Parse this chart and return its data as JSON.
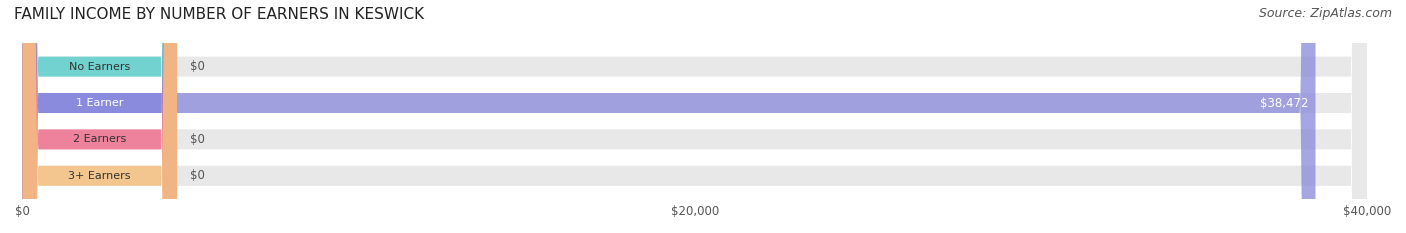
{
  "title": "FAMILY INCOME BY NUMBER OF EARNERS IN KESWICK",
  "source": "Source: ZipAtlas.com",
  "categories": [
    "No Earners",
    "1 Earner",
    "2 Earners",
    "3+ Earners"
  ],
  "values": [
    0,
    38472,
    0,
    0
  ],
  "bar_colors": [
    "#5ecfcc",
    "#8888dd",
    "#f07090",
    "#f5c080"
  ],
  "label_colors": [
    "#5ecfcc",
    "#8888dd",
    "#f07090",
    "#f5c080"
  ],
  "bar_bg_color": "#eeeeee",
  "bar_value_labels": [
    "$0",
    "$38,472",
    "$0",
    "$0"
  ],
  "xlim": [
    0,
    40000
  ],
  "xticks": [
    0,
    20000,
    40000
  ],
  "xtick_labels": [
    "$0",
    "$20,000",
    "$40,000"
  ],
  "background_color": "#ffffff",
  "title_fontsize": 11,
  "source_fontsize": 9,
  "bar_height": 0.55,
  "bar_bg_rounding": 0.3
}
